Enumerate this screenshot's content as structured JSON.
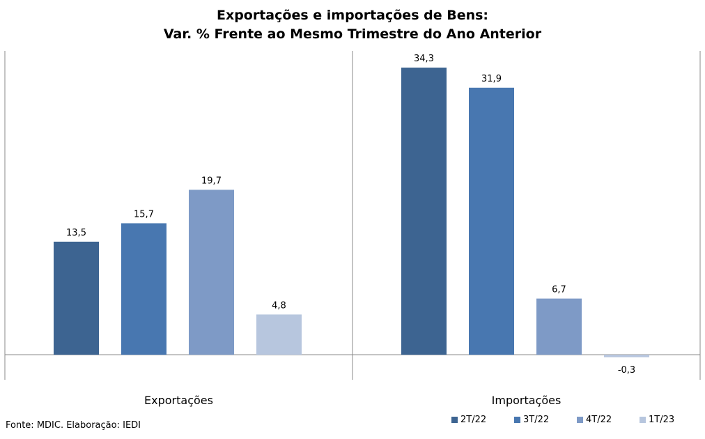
{
  "title_line1": "Exportações e importações de Bens:",
  "title_line2": "Var. % Frente ao Mesmo Trimestre do Ano Anterior",
  "source": "Fonte: MDIC. Elaboração: IEDI",
  "chart_data": {
    "type": "bar",
    "categories": [
      "Exportações",
      "Importações"
    ],
    "series": [
      {
        "name": "2T/22",
        "values": [
          13.5,
          34.3
        ],
        "labels": [
          "13,5",
          "34,3"
        ],
        "color": "#3d6491"
      },
      {
        "name": "3T/22",
        "values": [
          15.7,
          31.9
        ],
        "labels": [
          "15,7",
          "31,9"
        ],
        "color": "#4877b0"
      },
      {
        "name": "4T/22",
        "values": [
          19.7,
          6.7
        ],
        "labels": [
          "19,7",
          "6,7"
        ],
        "color": "#7e9ac6"
      },
      {
        "name": "1T/23",
        "values": [
          4.8,
          -0.3
        ],
        "labels": [
          "4,8",
          "-0,3"
        ],
        "color": "#b7c6de"
      }
    ],
    "ylim": [
      -3,
      36
    ],
    "grid": false,
    "legend_position": "bottom-right"
  }
}
